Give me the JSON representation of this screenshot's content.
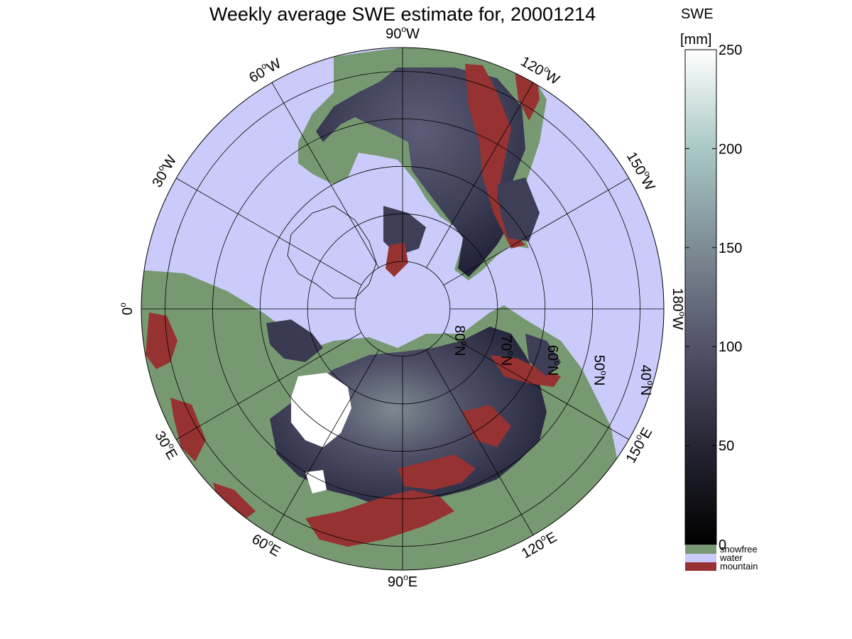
{
  "title": "Weekly average SWE estimate for, 20001214",
  "map": {
    "projection": "north-polar-stereographic",
    "colors": {
      "water": "#cbcbfb",
      "snowfree": "#779971",
      "mountain": "#963232",
      "snow_low": "#1c1c2a",
      "snow_mid": "#4a4a66",
      "snow_high": "#8fa3a6",
      "snow_max": "#ffffff"
    },
    "longitude_labels": [
      {
        "lon": 90,
        "hemi": "W",
        "text_deg": "90",
        "text_hemi": "W"
      },
      {
        "lon": 120,
        "hemi": "W",
        "text_deg": "120",
        "text_hemi": "W"
      },
      {
        "lon": 150,
        "hemi": "W",
        "text_deg": "150",
        "text_hemi": "W"
      },
      {
        "lon": 180,
        "hemi": "W",
        "text_deg": "180",
        "text_hemi": "W"
      },
      {
        "lon": 150,
        "hemi": "E",
        "text_deg": "150",
        "text_hemi": "E"
      },
      {
        "lon": 120,
        "hemi": "E",
        "text_deg": "120",
        "text_hemi": "E"
      },
      {
        "lon": 90,
        "hemi": "E",
        "text_deg": "90",
        "text_hemi": "E"
      },
      {
        "lon": 60,
        "hemi": "E",
        "text_deg": "60",
        "text_hemi": "E"
      },
      {
        "lon": 30,
        "hemi": "E",
        "text_deg": "30",
        "text_hemi": "E"
      },
      {
        "lon": 0,
        "hemi": "",
        "text_deg": "0",
        "text_hemi": ""
      },
      {
        "lon": 30,
        "hemi": "W",
        "text_deg": "30",
        "text_hemi": "W"
      },
      {
        "lon": 60,
        "hemi": "W",
        "text_deg": "60",
        "text_hemi": "W"
      }
    ],
    "latitude_labels": [
      {
        "lat": 80,
        "text_deg": "80",
        "text_hemi": "N"
      },
      {
        "lat": 70,
        "text_deg": "70",
        "text_hemi": "N"
      },
      {
        "lat": 60,
        "text_deg": "60",
        "text_hemi": "N"
      },
      {
        "lat": 50,
        "text_deg": "50",
        "text_hemi": "N"
      },
      {
        "lat": 40,
        "text_deg": "40",
        "text_hemi": "N"
      }
    ]
  },
  "colorbar": {
    "title": "SWE",
    "unit": "[mm]",
    "range": [
      0,
      250
    ],
    "ticks": [
      {
        "value": 0,
        "label": "0"
      },
      {
        "value": 50,
        "label": "50"
      },
      {
        "value": 100,
        "label": "100"
      },
      {
        "value": 150,
        "label": "150"
      },
      {
        "value": 200,
        "label": "200"
      },
      {
        "value": 250,
        "label": "250"
      }
    ],
    "legend": [
      {
        "key": "snowfree",
        "label": "snowfree",
        "color": "#779971"
      },
      {
        "key": "water",
        "label": "water",
        "color": "#cbcbfb"
      },
      {
        "key": "mountain",
        "label": "mountain",
        "color": "#963232"
      }
    ]
  }
}
